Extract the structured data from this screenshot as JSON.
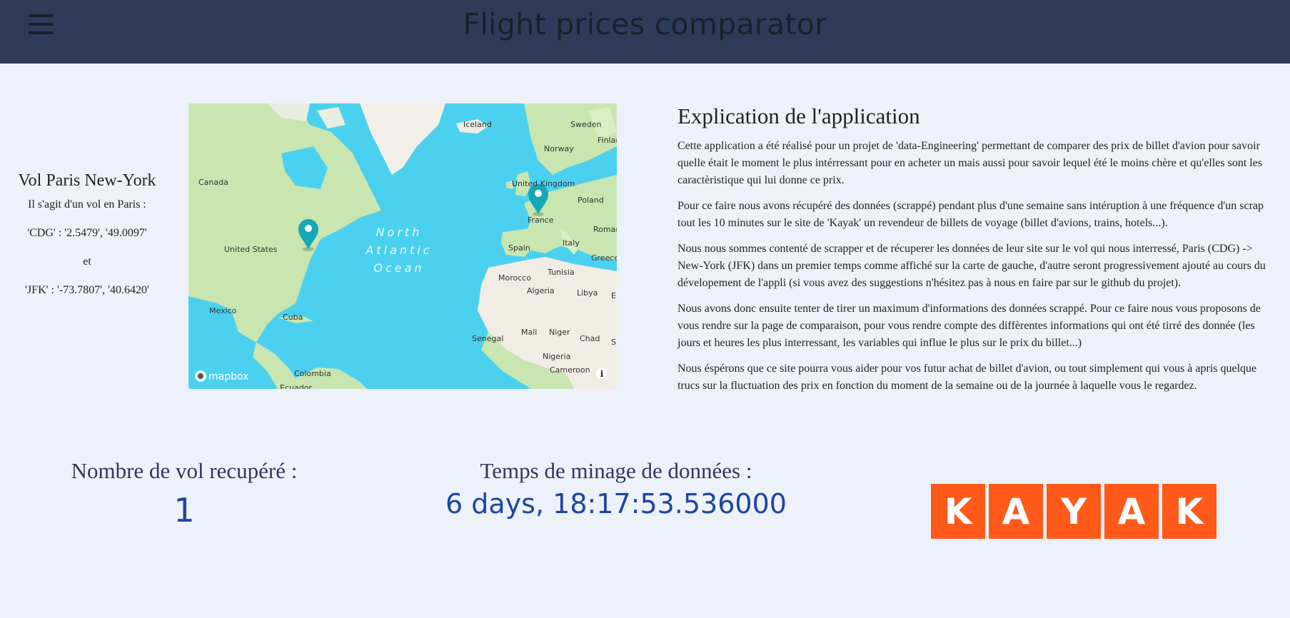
{
  "header": {
    "title": "Flight prices comparator",
    "menu_icon": "hamburger-menu-icon",
    "background": "#303b5a"
  },
  "route": {
    "title": "Vol Paris New-York",
    "line1": "Il s'agit d'un vol en Paris :",
    "line2": "'CDG' : '2.5479', '49.0097'",
    "line3": "et",
    "line4": "'JFK' : '-73.7807', '40.6420'"
  },
  "map": {
    "attribution": "mapbox",
    "info_icon": "info-icon",
    "ocean_label": [
      "North",
      "Atlantic",
      "Ocean"
    ],
    "labels": [
      "Iceland",
      "Sweden",
      "Finlan",
      "Norway",
      "Canada",
      "United Kingdom",
      "Poland",
      "France",
      "Roman",
      "Italy",
      "Spain",
      "Greece",
      "United States",
      "Morocco",
      "Tunisia",
      "Algeria",
      "Libya",
      "E",
      "Mexico",
      "Cuba",
      "Mali",
      "Niger",
      "Chad",
      "Senegal",
      "Nigeria",
      "Cameroon",
      "Colombia",
      "Ecuador",
      "S"
    ],
    "marker_color": "#16a7b6"
  },
  "explanation": {
    "heading": "Explication de l'application",
    "paragraphs": [
      "Cette application a été réalisé pour un projet de 'data-Engineering' permettant de comparer des prix de billet d'avion pour savoir quelle était le moment le plus intérressant pour en acheter un mais aussi pour savoir lequel été le moins chère et qu'elles sont les caractèristique qui lui donne ce prix.",
      "Pour ce faire nous avons récupéré des données (scrappé) pendant plus d'une semaine sans intéruption à une fréquence d'un scrap tout les 10 minutes sur le site de 'Kayak' un revendeur de billets de voyage (billet d'avions, trains, hotels...).",
      "Nous nous sommes contenté de scrapper et de récuperer les données de leur site sur le vol qui nous interressé, Paris (CDG) -> New-York (JFK) dans un premier temps comme affiché sur la carte de gauche, d'autre seront progressivement ajouté au cours du dévelopement de l'appli (si vous avez des suggestions n'hésitez pas à nous en faire par sur le github du projet).",
      "Nous avons donc ensuite tenter de tirer un maximum d'informations des données scrappé. Pour ce faire nous vous proposons de vous rendre sur la page de comparaison, pour vous rendre compte des diffèrentes informations qui ont été tirré des donnée (les jours et heures les plus interressant, les variables qui influe le plus sur le prix du billet...)",
      "Nous éspérons que ce site pourra vous aider pour vos futur achat de billet d'avion, ou tout simplement qui vous à apris quelque trucs sur la fluctuation des prix en fonction du moment de la semaine ou de la journée à laquelle vous le regardez."
    ]
  },
  "stats": {
    "flights_label": "Nombre de vol recupéré :",
    "flights_value": "1",
    "mining_label": "Temps de minage de données :",
    "mining_value": "6 days, 18:17:53.536000"
  },
  "logo": {
    "letters": [
      "K",
      "A",
      "Y",
      "A",
      "K"
    ],
    "color": "#ff5a1a"
  }
}
